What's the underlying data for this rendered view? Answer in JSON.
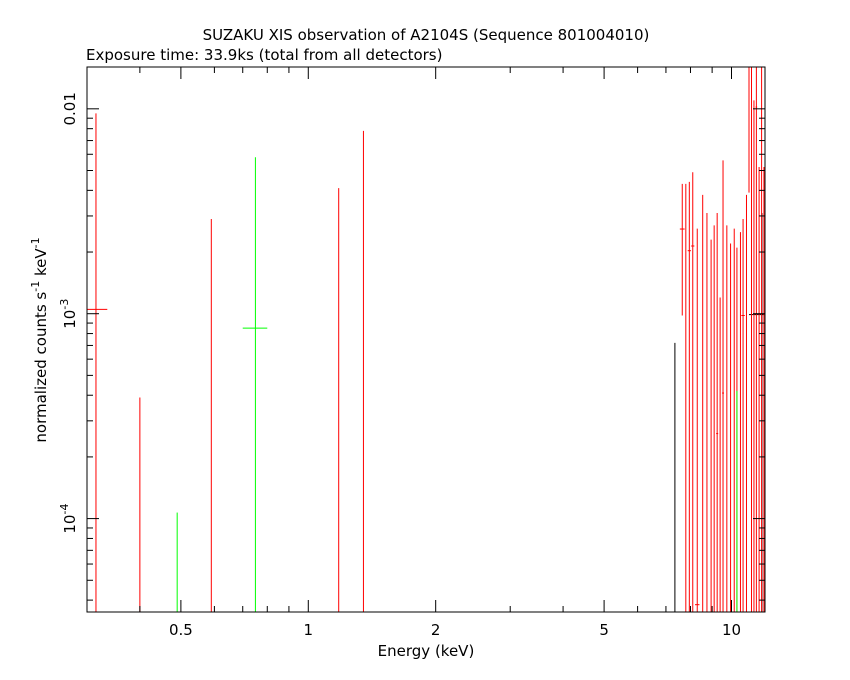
{
  "chart_data": {
    "type": "scatter",
    "title": "SUZAKU XIS observation of A2104S (Sequence 801004010)",
    "subtitle": "Exposure time: 33.9ks (total from all detectors)",
    "xlabel": "Energy (keV)",
    "ylabel_main": "normalized counts s",
    "ylabel_sup1": "-1",
    "ylabel_mid": " keV",
    "ylabel_sup2": "-1",
    "x_scale": "log",
    "y_scale": "log",
    "xlim": [
      0.3,
      12.0
    ],
    "ylim": [
      3.5e-05,
      0.016
    ],
    "x_ticks": [
      {
        "label": "0.5",
        "value": 0.5
      },
      {
        "label": "1",
        "value": 1
      },
      {
        "label": "2",
        "value": 2
      },
      {
        "label": "5",
        "value": 5
      },
      {
        "label": "10",
        "value": 10
      }
    ],
    "y_ticks": [
      {
        "base": "10",
        "exp": "-4",
        "value": 0.0001
      },
      {
        "base": "10",
        "exp": "-3",
        "value": 0.001
      },
      {
        "label": "0.01",
        "value": 0.01
      }
    ],
    "grid": false,
    "legend": "none",
    "series": [
      {
        "color": "#000000",
        "points": [
          {
            "x": 7.35,
            "x_lo": 7.35,
            "x_hi": 7.35,
            "y": 3.5e-05,
            "y_lo": 3.5e-05,
            "y_hi": 0.00072
          },
          {
            "x": 11.8,
            "x_lo": 11.0,
            "x_hi": 12.0,
            "y": 0.00099,
            "y_lo": 3.5e-05,
            "y_hi": 0.0031
          }
        ]
      },
      {
        "color": "#ff0000",
        "points": [
          {
            "x": 0.315,
            "x_lo": 0.3,
            "x_hi": 0.335,
            "y": 0.00105,
            "y_lo": 3.5e-05,
            "y_hi": 0.0095
          },
          {
            "x": 0.4,
            "x_lo": 0.4,
            "x_hi": 0.4,
            "y": 3.5e-05,
            "y_lo": 3.5e-05,
            "y_hi": 0.00039
          },
          {
            "x": 0.59,
            "x_lo": 0.59,
            "x_hi": 0.59,
            "y": 3.5e-05,
            "y_lo": 3.5e-05,
            "y_hi": 0.0029
          },
          {
            "x": 1.18,
            "x_lo": 1.18,
            "x_hi": 1.18,
            "y": 3.5e-05,
            "y_lo": 3.5e-05,
            "y_hi": 0.0041
          },
          {
            "x": 1.35,
            "x_lo": 1.35,
            "x_hi": 1.35,
            "y": 3.5e-05,
            "y_lo": 3.5e-05,
            "y_hi": 0.0078
          },
          {
            "x": 7.65,
            "x_lo": 7.55,
            "x_hi": 7.75,
            "y": 0.00259,
            "y_lo": 0.00098,
            "y_hi": 0.0043
          },
          {
            "x": 7.8,
            "x_lo": 7.8,
            "x_hi": 7.8,
            "y": 3.5e-05,
            "y_lo": 3.5e-05,
            "y_hi": 0.0043
          },
          {
            "x": 7.95,
            "x_lo": 7.88,
            "x_hi": 8.02,
            "y": 0.00203,
            "y_lo": 3.5e-05,
            "y_hi": 0.0044
          },
          {
            "x": 8.1,
            "x_lo": 8.03,
            "x_hi": 8.17,
            "y": 0.00214,
            "y_lo": 3.5e-05,
            "y_hi": 0.0049
          },
          {
            "x": 8.3,
            "x_lo": 8.2,
            "x_hi": 8.4,
            "y": 3.8e-05,
            "y_lo": 3.5e-05,
            "y_hi": 0.0026
          },
          {
            "x": 8.55,
            "x_lo": 8.55,
            "x_hi": 8.55,
            "y": 3.5e-05,
            "y_lo": 3.5e-05,
            "y_hi": 0.0038
          },
          {
            "x": 8.75,
            "x_lo": 8.75,
            "x_hi": 8.75,
            "y": 3.5e-05,
            "y_lo": 3.5e-05,
            "y_hi": 0.0031
          },
          {
            "x": 8.95,
            "x_lo": 8.95,
            "x_hi": 8.95,
            "y": 3.5e-05,
            "y_lo": 3.5e-05,
            "y_hi": 0.0023
          },
          {
            "x": 9.1,
            "x_lo": 9.1,
            "x_hi": 9.1,
            "y": 3.5e-05,
            "y_lo": 3.5e-05,
            "y_hi": 0.0027
          },
          {
            "x": 9.25,
            "x_lo": 9.2,
            "x_hi": 9.3,
            "y": 0.00026,
            "y_lo": 3.5e-05,
            "y_hi": 0.0031
          },
          {
            "x": 9.4,
            "x_lo": 9.4,
            "x_hi": 9.4,
            "y": 3.5e-05,
            "y_lo": 3.5e-05,
            "y_hi": 0.0012
          },
          {
            "x": 9.55,
            "x_lo": 9.5,
            "x_hi": 9.6,
            "y": 0.00041,
            "y_lo": 3.5e-05,
            "y_hi": 0.0056
          },
          {
            "x": 9.75,
            "x_lo": 9.75,
            "x_hi": 9.75,
            "y": 3.5e-05,
            "y_lo": 3.5e-05,
            "y_hi": 0.0027
          },
          {
            "x": 9.95,
            "x_lo": 9.95,
            "x_hi": 9.95,
            "y": 3.5e-05,
            "y_lo": 3.5e-05,
            "y_hi": 0.0022
          },
          {
            "x": 10.15,
            "x_lo": 10.15,
            "x_hi": 10.15,
            "y": 3.5e-05,
            "y_lo": 3.5e-05,
            "y_hi": 0.0026
          },
          {
            "x": 10.3,
            "x_lo": 10.3,
            "x_hi": 10.3,
            "y": 3.5e-05,
            "y_lo": 3.5e-05,
            "y_hi": 0.0021
          },
          {
            "x": 10.5,
            "x_lo": 10.5,
            "x_hi": 10.5,
            "y": 3.5e-05,
            "y_lo": 3.5e-05,
            "y_hi": 0.0025
          },
          {
            "x": 10.65,
            "x_lo": 10.55,
            "x_hi": 10.75,
            "y": 0.00098,
            "y_lo": 3.5e-05,
            "y_hi": 0.0029
          },
          {
            "x": 10.85,
            "x_lo": 10.85,
            "x_hi": 10.85,
            "y": 3.5e-05,
            "y_lo": 3.5e-05,
            "y_hi": 0.0038
          },
          {
            "x": 11.0,
            "x_lo": 11.0,
            "x_hi": 11.0,
            "y": 0.0065,
            "y_lo": 0.0039,
            "y_hi": 0.016
          },
          {
            "x": 11.15,
            "x_lo": 11.15,
            "x_hi": 11.15,
            "y": 3.5e-05,
            "y_lo": 3.5e-05,
            "y_hi": 0.016
          },
          {
            "x": 11.3,
            "x_lo": 11.3,
            "x_hi": 11.3,
            "y": 3.5e-05,
            "y_lo": 3.5e-05,
            "y_hi": 0.011
          },
          {
            "x": 11.45,
            "x_lo": 11.4,
            "x_hi": 11.5,
            "y": 0.0102,
            "y_lo": 3.5e-05,
            "y_hi": 0.016
          },
          {
            "x": 11.62,
            "x_lo": 11.62,
            "x_hi": 11.62,
            "y": 3.5e-05,
            "y_lo": 3.5e-05,
            "y_hi": 0.0052
          },
          {
            "x": 11.78,
            "x_lo": 11.78,
            "x_hi": 11.78,
            "y": 3.5e-05,
            "y_lo": 3.5e-05,
            "y_hi": 0.016
          },
          {
            "x": 11.93,
            "x_lo": 11.93,
            "x_hi": 11.93,
            "y": 3.5e-05,
            "y_lo": 3.5e-05,
            "y_hi": 0.0052
          }
        ]
      },
      {
        "color": "#00ff00",
        "points": [
          {
            "x": 0.49,
            "x_lo": 0.49,
            "x_hi": 0.49,
            "y": 3.5e-05,
            "y_lo": 3.5e-05,
            "y_hi": 0.000107
          },
          {
            "x": 0.75,
            "x_lo": 0.7,
            "x_hi": 0.8,
            "y": 0.00085,
            "y_lo": 3.5e-05,
            "y_hi": 0.0058
          },
          {
            "x": 10.3,
            "x_lo": 10.3,
            "x_hi": 10.3,
            "y": 3.5e-05,
            "y_lo": 3.5e-05,
            "y_hi": 0.00042
          }
        ]
      }
    ]
  }
}
